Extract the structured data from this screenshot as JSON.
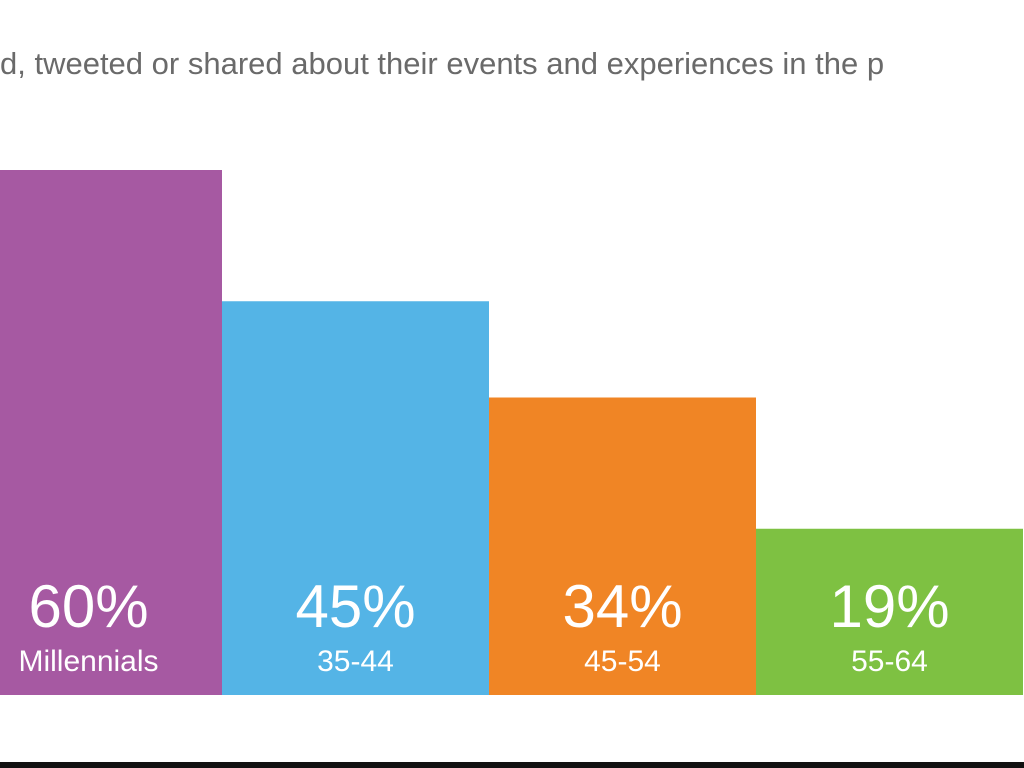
{
  "title": "d, tweeted or shared about their events and experiences in the p",
  "colors": {
    "background": "#ffffff",
    "title_text": "#6a6a6a",
    "label_text": "#ffffff",
    "bars": [
      "#a659a2",
      "#54b4e6",
      "#f08525",
      "#7ec142"
    ]
  },
  "chart_data": {
    "type": "bar",
    "title": "d, tweeted or shared about their events and experiences in the p",
    "categories": [
      "Millennials",
      "35-44",
      "45-54",
      "55-64"
    ],
    "values": [
      60,
      45,
      34,
      19
    ],
    "value_labels": [
      "60%",
      "45%",
      "34%",
      "19%"
    ],
    "colors": [
      "#a659a2",
      "#54b4e6",
      "#f08525",
      "#7ec142"
    ],
    "xlabel": "",
    "ylabel": "",
    "ylim": [
      0,
      60
    ],
    "grid": false,
    "legend": "none",
    "axes_visible": false
  }
}
